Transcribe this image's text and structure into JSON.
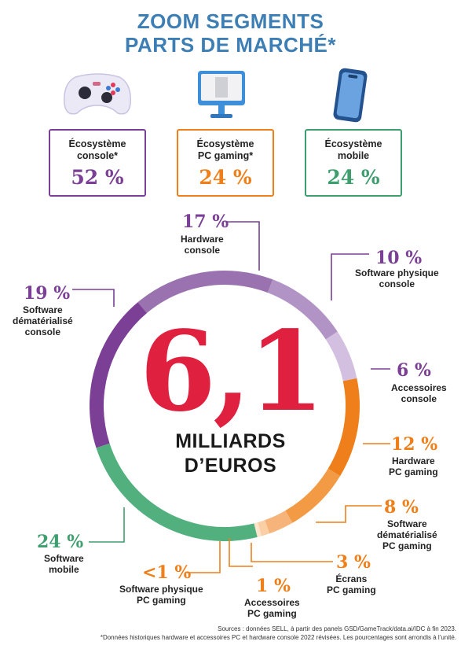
{
  "title": {
    "line1": "ZOOM SEGMENTS",
    "line2": "PARTS DE MARCHÉ*"
  },
  "ecosystems": [
    {
      "label": "Écosystème\nconsole*",
      "value": "52 %",
      "color": "#7b3f95",
      "icon": "gamepad-icon"
    },
    {
      "label": "Écosystème\nPC gaming*",
      "value": "24 %",
      "color": "#ee7f1a",
      "icon": "monitor-icon"
    },
    {
      "label": "Écosystème\nmobile",
      "value": "24 %",
      "color": "#3e9e6e",
      "icon": "smartphone-icon"
    }
  ],
  "center": {
    "value": "6,1",
    "unit_line1": "MILLIARDS",
    "unit_line2": "D’EUROS"
  },
  "chart_data": {
    "type": "pie",
    "total": 6.1,
    "categories": [
      "Hardware console",
      "Software physique console",
      "Accessoires console",
      "Hardware PC gaming",
      "Software dématérialisé PC gaming",
      "Écrans PC gaming",
      "Accessoires PC gaming",
      "Software physique PC gaming",
      "Software mobile",
      "Software dématérialisé console"
    ],
    "values": [
      17,
      10,
      6,
      12,
      8,
      3,
      1,
      0.5,
      24,
      19
    ],
    "display_values": [
      "17 %",
      "10 %",
      "6 %",
      "12 %",
      "8 %",
      "3 %",
      "1 %",
      "<1 %",
      "24 %",
      "19 %"
    ],
    "labels": [
      "Hardware\nconsole",
      "Software physique\nconsole",
      "Accessoires\nconsole",
      "Hardware\nPC gaming",
      "Software\ndématérialisé\nPC gaming",
      "Écrans\nPC gaming",
      "Accessoires\nPC gaming",
      "Software physique\nPC gaming",
      "Software\nmobile",
      "Software\ndématérialisé\nconsole"
    ],
    "colors": [
      "#9b72b0",
      "#b293c6",
      "#d3bfe0",
      "#ee7f1a",
      "#f39a45",
      "#f7b47a",
      "#fbcfa6",
      "#fde4cc",
      "#52b07f",
      "#7b3f95"
    ]
  },
  "sources": {
    "line1": "Sources : données SELL, à partir des panels GSD/GameTrack/data.ai/IDC à fin 2023.",
    "line2": "*Données historiques hardware et accessoires PC et hardware console 2022 révisées. Les pourcentages sont arrondis à l’unité."
  }
}
